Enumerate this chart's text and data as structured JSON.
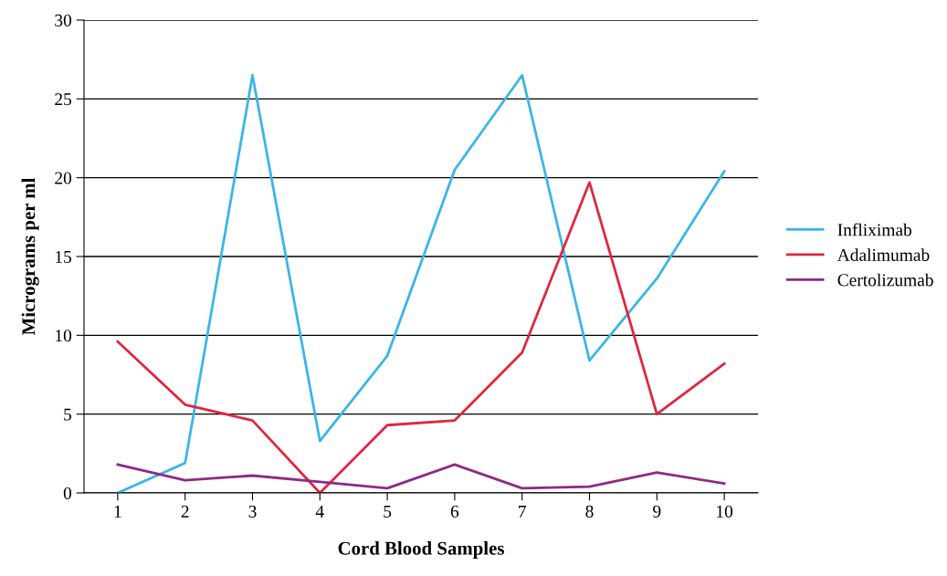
{
  "chart_data": {
    "type": "line",
    "xlabel": "Cord Blood Samples",
    "ylabel": "Micrograms per ml",
    "categories": [
      "1",
      "2",
      "3",
      "4",
      "5",
      "6",
      "7",
      "8",
      "9",
      "10"
    ],
    "series": [
      {
        "name": "Infliximab",
        "color": "#3bb5e6",
        "values": [
          0,
          1.9,
          26.5,
          3.3,
          8.7,
          20.5,
          26.5,
          8.4,
          13.6,
          20.4
        ]
      },
      {
        "name": "Adalimumab",
        "color": "#e0263f",
        "values": [
          9.6,
          5.6,
          4.6,
          0,
          4.3,
          4.6,
          8.9,
          19.7,
          5.0,
          8.2
        ]
      },
      {
        "name": "Certolizumab",
        "color": "#8e2a84",
        "values": [
          1.8,
          0.8,
          1.1,
          0.7,
          0.3,
          1.8,
          0.3,
          0.4,
          1.3,
          0.6
        ]
      }
    ],
    "ylim": [
      0,
      30
    ],
    "yticks": [
      0,
      5,
      10,
      15,
      20,
      25,
      30
    ],
    "grid": "y",
    "legend": "right",
    "marker": "none",
    "line_style": "solid"
  }
}
